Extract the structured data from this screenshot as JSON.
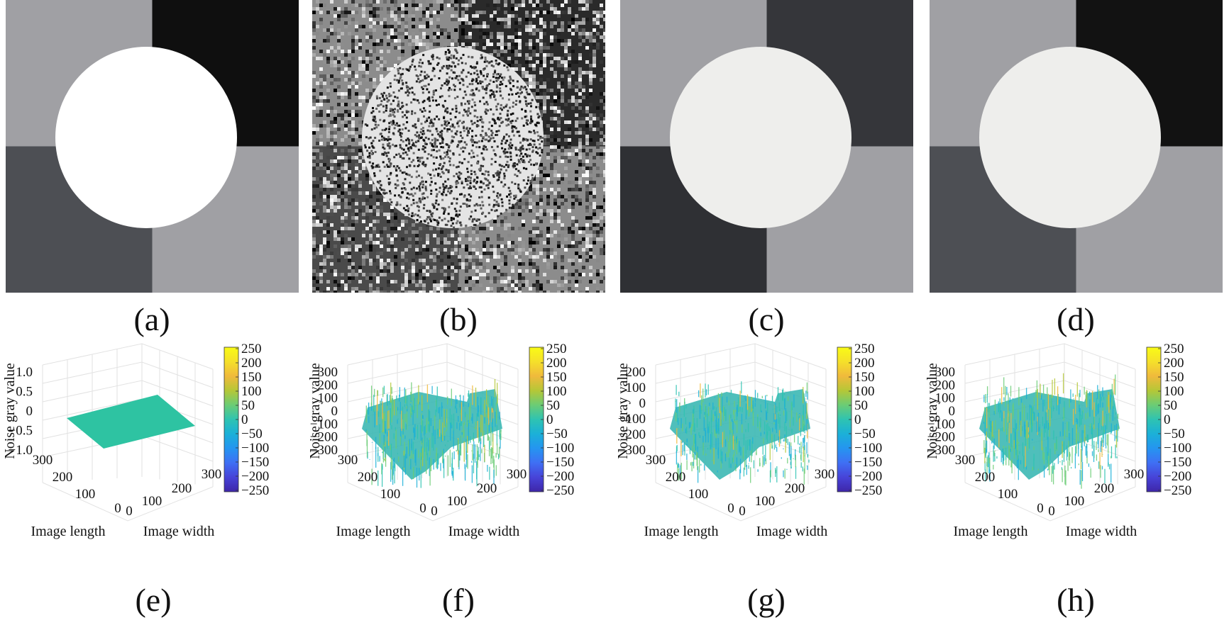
{
  "figure": {
    "top_panels": [
      {
        "id": "a",
        "caption": "(a)",
        "type": "clean",
        "quadrants": {
          "tl": "#a0a0a4",
          "tr": "#0f0f0f",
          "bl": "#4d4f54",
          "br": "#a0a0a4"
        },
        "circle": "#ffffff"
      },
      {
        "id": "b",
        "caption": "(b)",
        "type": "noisy",
        "quadrants": {
          "tl": "#8c8c8c",
          "tr": "#2a2a2a",
          "bl": "#4a4a4a",
          "br": "#8c8c8c"
        },
        "circle": "#e4e4e4"
      },
      {
        "id": "c",
        "caption": "(c)",
        "type": "segmented",
        "quadrants": {
          "tl": "#a0a0a4",
          "tr": "#35363a",
          "bl": "#2f3034",
          "br": "#a0a0a4"
        },
        "circle": "#eeeeec"
      },
      {
        "id": "d",
        "caption": "(d)",
        "type": "segmented",
        "quadrants": {
          "tl": "#a0a0a4",
          "tr": "#121212",
          "bl": "#4d4f54",
          "br": "#a0a0a4"
        },
        "circle": "#eeeeec"
      }
    ],
    "bottom_panels": [
      {
        "id": "e",
        "caption": "(e)",
        "zlabel": "Noise gray value",
        "xlabel": "Image length",
        "ylabel": "Image width",
        "zticks": [
          "1.0",
          "0.5",
          "0",
          "−0.5",
          "−1.0"
        ],
        "noise": 0,
        "xticks": [
          "300",
          "200",
          "100",
          "0"
        ],
        "yticks": [
          "0",
          "100",
          "200",
          "300"
        ]
      },
      {
        "id": "f",
        "caption": "(f)",
        "zlabel": "Noise gray value",
        "xlabel": "Image length",
        "ylabel": "Image width",
        "zticks": [
          "300",
          "200",
          "100",
          "0",
          "−100",
          "−200",
          "−300"
        ],
        "noise": 1,
        "xticks": [
          "300",
          "200",
          "100",
          "0"
        ],
        "yticks": [
          "0",
          "100",
          "200",
          "300"
        ]
      },
      {
        "id": "g",
        "caption": "(g)",
        "zlabel": "Noise gray value",
        "xlabel": "Image length",
        "ylabel": "Image width",
        "zticks": [
          "200",
          "100",
          "0",
          "−100",
          "−200",
          "−300"
        ],
        "noise": 0.8,
        "xticks": [
          "300",
          "200",
          "100",
          "0"
        ],
        "yticks": [
          "0",
          "100",
          "200",
          "300"
        ]
      },
      {
        "id": "h",
        "caption": "(h)",
        "zlabel": "Noise gray value",
        "xlabel": "Image length",
        "ylabel": "Image width",
        "zticks": [
          "300",
          "200",
          "100",
          "0",
          "−100",
          "−200",
          "−300"
        ],
        "noise": 1,
        "xticks": [
          "300",
          "200",
          "100",
          "0"
        ],
        "yticks": [
          "0",
          "100",
          "200",
          "300"
        ]
      }
    ],
    "colorbar_ticks": [
      "250",
      "200",
      "150",
      "100",
      "50",
      "0",
      "−50",
      "−100",
      "−150",
      "−200",
      "−250"
    ]
  }
}
